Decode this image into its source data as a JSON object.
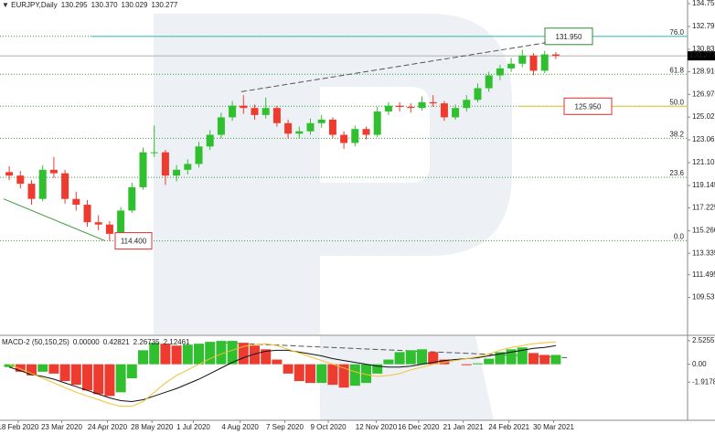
{
  "chart_data": [
    {
      "type": "candlestick",
      "title": "EURJPY,Daily",
      "header_values": [
        130.295,
        {
          "value": 130.37,
          "label": "130.370"
        },
        130.029,
        130.277
      ],
      "open": [
        120.3,
        120.0,
        119.3,
        118.0,
        120.5,
        120.2,
        118.0,
        117.5,
        116.0,
        115.8,
        115.0,
        117.0,
        119.0,
        122.0,
        122.0,
        120.0,
        120.5,
        121.0,
        122.5,
        123.5,
        125.0,
        126.0,
        125.8,
        125.2,
        125.8,
        124.5,
        123.6,
        123.8,
        124.5,
        124.8,
        123.5,
        122.8,
        124.0,
        123.5,
        125.5,
        126.0,
        125.9,
        125.8,
        126.3,
        126.2,
        125.0,
        125.8,
        126.5,
        127.5,
        128.6,
        129.2,
        129.6,
        130.3,
        129.0,
        130.4
      ],
      "high": [
        120.8,
        120.4,
        119.6,
        120.9,
        121.6,
        120.5,
        118.6,
        117.9,
        116.6,
        116.1,
        117.3,
        119.4,
        122.4,
        124.3,
        122.2,
        120.9,
        121.4,
        122.9,
        123.9,
        125.4,
        126.4,
        126.9,
        126.1,
        126.7,
        126.0,
        124.8,
        124.2,
        124.9,
        125.2,
        125.0,
        123.8,
        124.3,
        124.2,
        125.9,
        126.3,
        126.3,
        126.2,
        126.8,
        126.9,
        126.4,
        126.1,
        126.9,
        127.9,
        128.9,
        129.5,
        130.1,
        130.8,
        130.5,
        130.7,
        130.6
      ],
      "low": [
        119.6,
        118.9,
        117.5,
        117.8,
        119.8,
        117.6,
        117.0,
        115.6,
        115.3,
        114.4,
        114.8,
        116.8,
        118.8,
        121.6,
        119.2,
        119.5,
        120.1,
        120.7,
        122.2,
        123.2,
        124.7,
        125.3,
        124.8,
        124.9,
        124.2,
        123.2,
        123.2,
        123.5,
        124.1,
        123.2,
        122.3,
        122.5,
        123.1,
        123.3,
        125.2,
        125.5,
        125.4,
        125.6,
        125.9,
        124.7,
        124.8,
        125.5,
        126.3,
        127.2,
        128.2,
        128.9,
        129.3,
        128.6,
        128.8,
        130.0
      ],
      "close": [
        120.0,
        119.3,
        118.0,
        120.5,
        120.2,
        118.0,
        117.5,
        116.0,
        115.8,
        115.0,
        117.0,
        119.0,
        122.0,
        122.0,
        120.0,
        120.5,
        121.0,
        122.5,
        123.5,
        125.0,
        126.0,
        125.8,
        125.2,
        125.8,
        124.5,
        123.6,
        123.8,
        124.5,
        124.8,
        123.5,
        122.8,
        124.0,
        123.5,
        125.5,
        126.0,
        125.9,
        125.8,
        126.3,
        126.2,
        125.0,
        125.8,
        126.5,
        127.5,
        128.6,
        129.2,
        129.6,
        130.3,
        129.0,
        130.4,
        130.277
      ],
      "up_color": "#2fbf2f",
      "down_color": "#ee3b30",
      "ylim": [
        106.37,
        135.07
      ],
      "yticks": [
        134.755,
        132.795,
        130.835,
        {
          "value": 128.91,
          "label": "128.910"
        },
        {
          "value": 126.97,
          "label": "126.970"
        },
        125.025,
        123.065,
        121.105,
        119.145,
        117.225,
        {
          "value": 115.26,
          "label": "115.260"
        },
        113.335,
        111.495,
        109.535
      ],
      "xlim": [
        0,
        50
      ],
      "xticks": [
        {
          "value": 1.3,
          "label": "18 Feb 2020"
        },
        {
          "value": 5.2,
          "label": "23 Mar 2020"
        },
        {
          "value": 9.3,
          "label": "24 Apr 2020"
        },
        {
          "value": 13.3,
          "label": "28 May 2020"
        },
        {
          "value": 17.0,
          "label": "1 Jul 2020"
        },
        {
          "value": 21.2,
          "label": "4 Aug 2020"
        },
        {
          "value": 25.2,
          "label": "7 Sep 2020"
        },
        {
          "value": 29.1,
          "label": "9 Oct 2020"
        },
        {
          "value": 33.4,
          "label": "12 Nov 2020"
        },
        {
          "value": 37.2,
          "label": "16 Dec 2020"
        },
        {
          "value": 41.2,
          "label": "21 Jan 2021"
        },
        {
          "value": 45.3,
          "label": "24 Feb 2021"
        },
        {
          "value": 49.3,
          "label": "30 Mar 2021"
        }
      ],
      "last_price": 130.277,
      "fib_color": "#3a9a3a",
      "fib": [
        {
          "ratio": {
            "value": 76,
            "label": "76.0"
          },
          "price": 131.95
        },
        {
          "ratio": 61.8,
          "price": 128.7
        },
        {
          "ratio": {
            "value": 50,
            "label": "50.0"
          },
          "price": 125.95
        },
        {
          "ratio": 38.2,
          "price": 123.2
        },
        {
          "ratio": 23.6,
          "price": 119.85
        },
        {
          "ratio": {
            "value": 0,
            "label": "0.0"
          },
          "price": 114.4
        }
      ],
      "levels": [
        {
          "value": 131.95,
          "label": "131.950",
          "start": 7.9,
          "color": "#4cc3c3",
          "text_color": "#2e8b2e"
        },
        {
          "value": 125.95,
          "label": "125.950",
          "start": 46.2,
          "color": "#e0cf3a",
          "text_color": "#e03030"
        }
      ],
      "low_label": {
        "value": 114.4,
        "label": "114.400",
        "color": "#e03030"
      },
      "trendlines": [
        {
          "points": [
            [
              21.3,
              127.2
            ],
            [
              48.6,
              131.4
            ]
          ],
          "color": "#555555",
          "dash": true
        },
        {
          "points": [
            [
              0,
              118.0
            ],
            [
              9.1,
              114.4
            ]
          ],
          "color": "#3a9a3a",
          "dash": false
        }
      ]
    },
    {
      "type": "macd",
      "title": "MACD-2 (50,150,25)",
      "header_values": [
        {
          "value": 0,
          "label": "0.00000"
        },
        0.42821,
        2.26735,
        2.12461
      ],
      "histogram": [
        -0.3,
        -0.8,
        -1.2,
        -0.8,
        -1.0,
        -1.8,
        -2.2,
        -2.8,
        -3.2,
        -3.4,
        -3.0,
        -1.5,
        1.5,
        2.3,
        2.2,
        2.0,
        2.1,
        2.2,
        2.4,
        2.5,
        2.5,
        2.3,
        2.0,
        1.6,
        0.5,
        -1.0,
        -1.8,
        -2.0,
        -2.0,
        -2.2,
        -2.5,
        -2.3,
        -2.0,
        -1.0,
        0.5,
        1.3,
        1.5,
        1.6,
        1.3,
        0.5,
        0.0,
        -0.1,
        0.1,
        0.6,
        1.3,
        1.6,
        1.8,
        1.2,
        1.0,
        1.0
      ],
      "up_color": "#2fbf2f",
      "down_color": "#ee3b30",
      "series": [
        {
          "color": "#111111",
          "values": [
            -0.3,
            -0.7,
            -1.1,
            -1.3,
            -1.6,
            -2.0,
            -2.4,
            -2.8,
            -3.2,
            -3.6,
            -3.9,
            -4.0,
            -3.8,
            -3.4,
            -3.0,
            -2.6,
            -2.1,
            -1.6,
            -1.0,
            -0.4,
            0.2,
            0.7,
            1.1,
            1.4,
            1.5,
            1.5,
            1.3,
            1.1,
            0.9,
            0.6,
            0.4,
            0.2,
            0.0,
            -0.2,
            -0.3,
            -0.3,
            -0.2,
            0.0,
            0.2,
            0.4,
            0.5,
            0.6,
            0.7,
            0.9,
            1.1,
            1.3,
            1.5,
            1.7,
            1.8,
            2.0
          ]
        },
        {
          "color": "#f2c230",
          "values": [
            0.0,
            -0.5,
            -1.0,
            -1.5,
            -2.0,
            -2.5,
            -3.0,
            -3.4,
            -3.8,
            -4.2,
            -4.5,
            -4.5,
            -4.0,
            -3.0,
            -2.0,
            -1.2,
            -0.6,
            0.0,
            0.6,
            1.1,
            1.5,
            1.9,
            2.1,
            2.2,
            2.0,
            1.6,
            1.2,
            0.8,
            0.4,
            0.0,
            -0.4,
            -0.8,
            -1.1,
            -1.3,
            -1.2,
            -1.0,
            -0.6,
            -0.3,
            0.0,
            0.2,
            0.4,
            0.6,
            0.8,
            1.1,
            1.5,
            1.8,
            2.0,
            2.2,
            2.3,
            2.4
          ]
        }
      ],
      "ylim": [
        -6,
        3
      ],
      "yticks": [
        2.52552,
        {
          "value": 0,
          "label": "0.00"
        },
        -1.91788
      ],
      "trendlines": [
        {
          "points": [
            [
              19.8,
              2.3
            ],
            [
              50.5,
              0.7
            ]
          ],
          "color": "#555555",
          "dash": true
        }
      ]
    }
  ]
}
